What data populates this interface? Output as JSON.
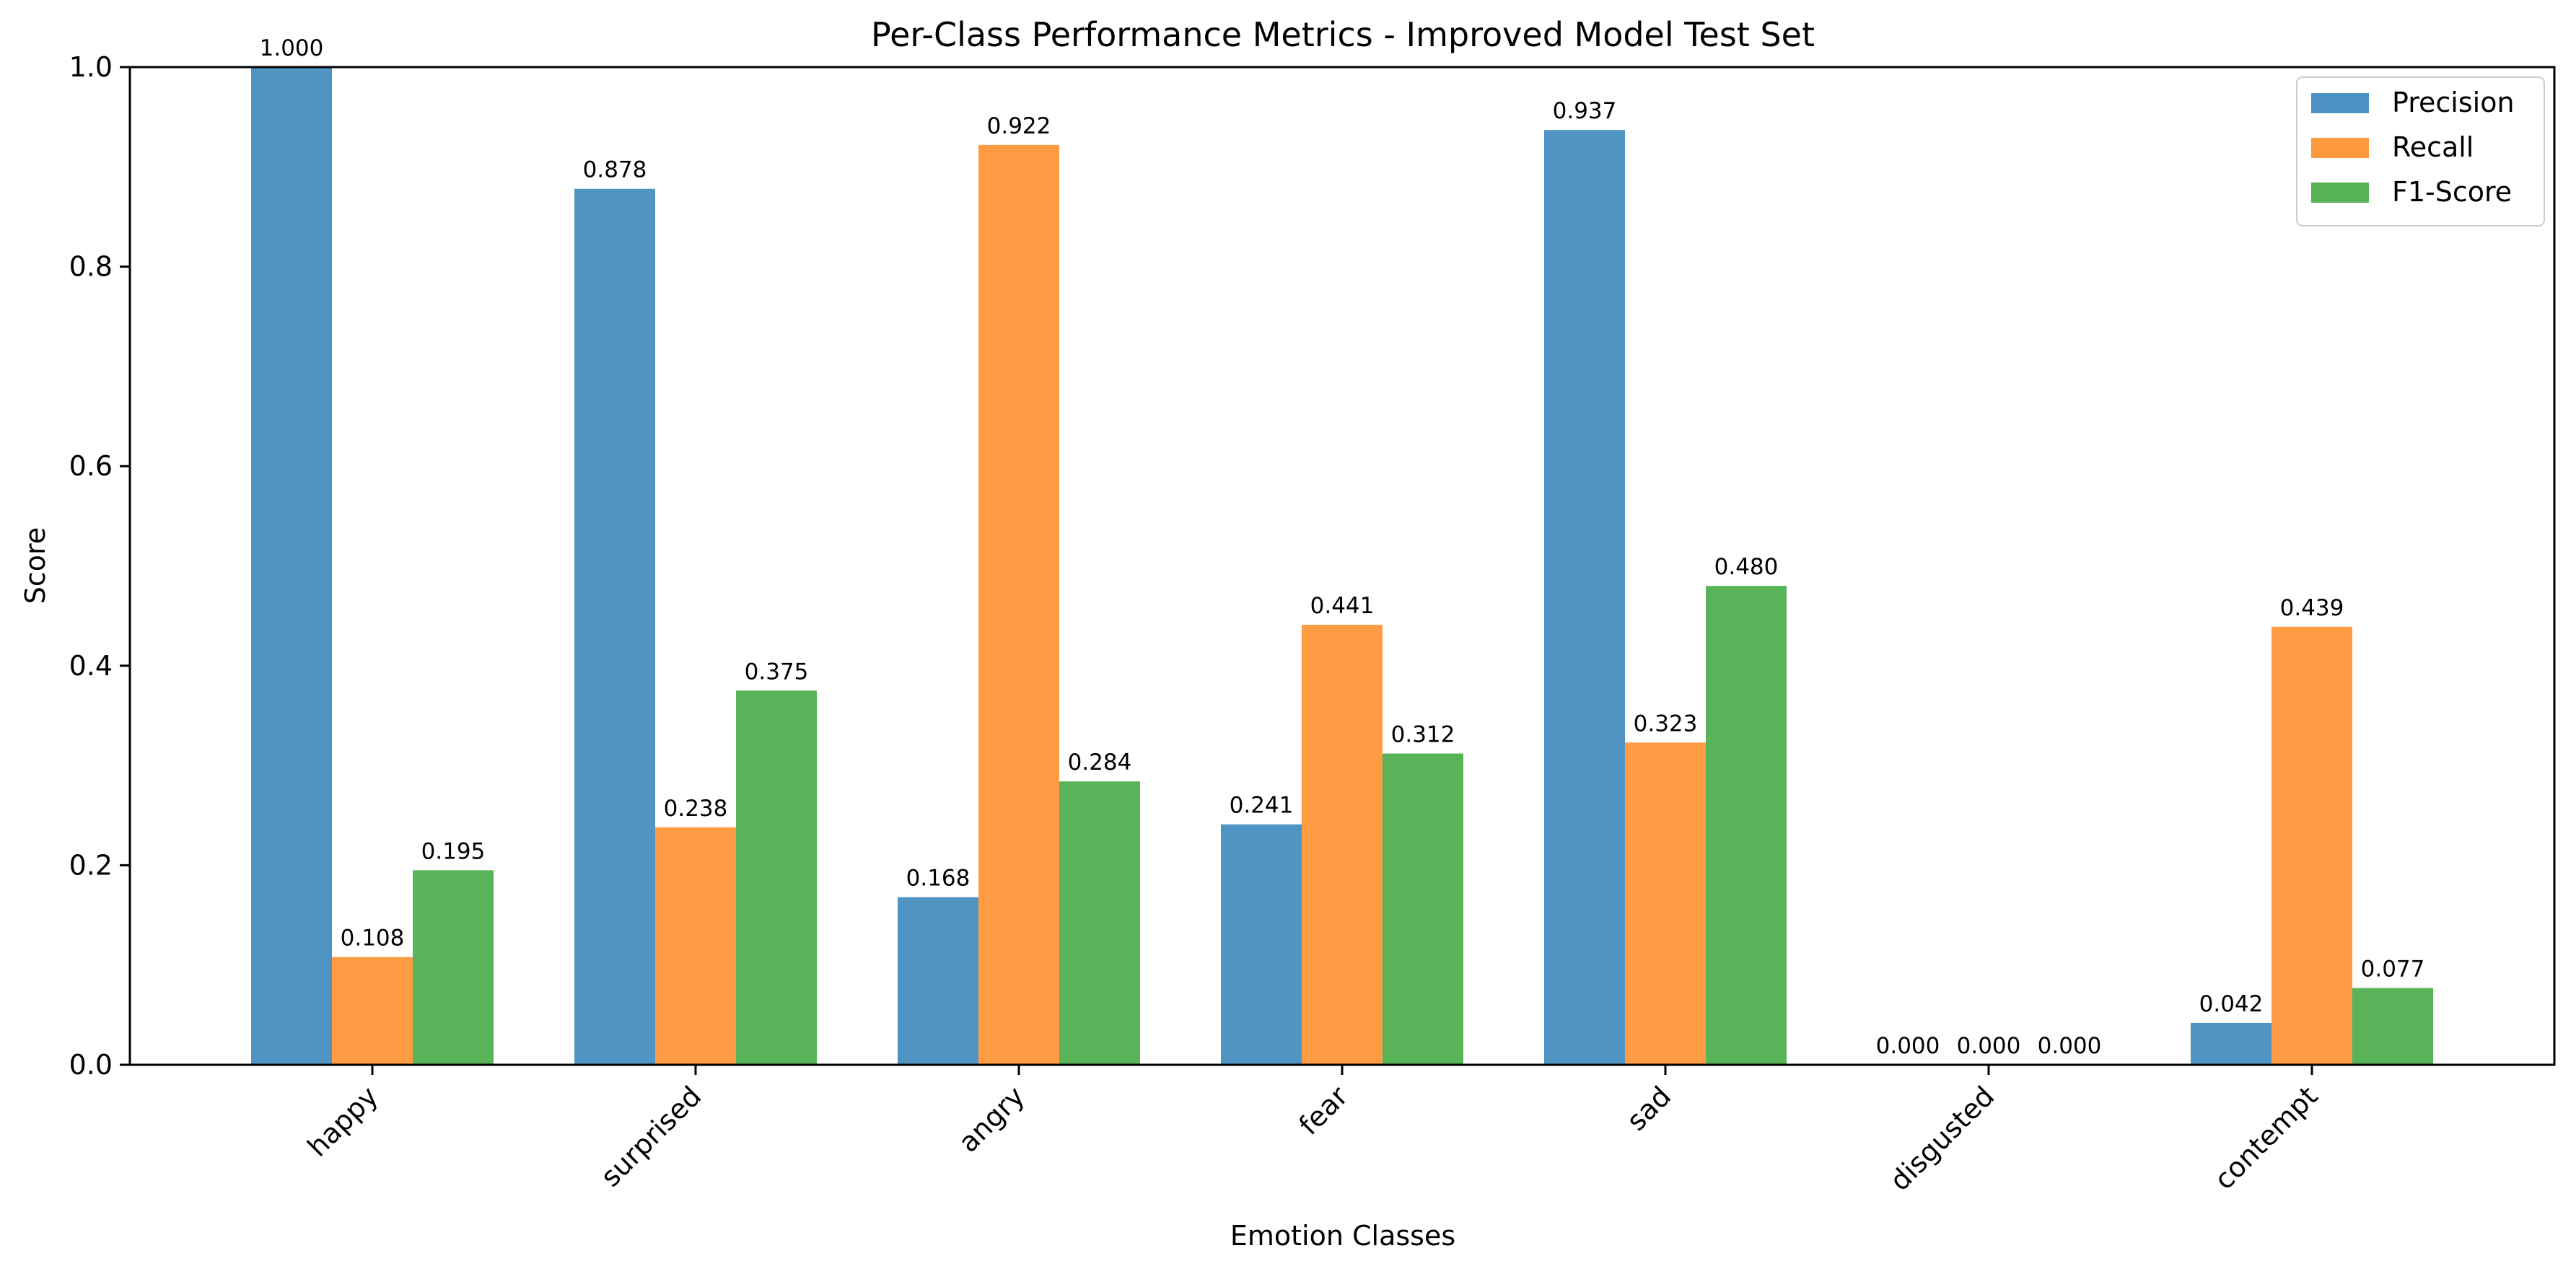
{
  "chart_data": {
    "type": "bar",
    "title": "Per-Class Performance Metrics - Improved Model Test Set",
    "xlabel": "Emotion Classes",
    "ylabel": "Score",
    "ylim": [
      0,
      1.0
    ],
    "yticks": [
      "0.0",
      "0.2",
      "0.4",
      "0.6",
      "0.8",
      "1.0"
    ],
    "categories": [
      "happy",
      "surprised",
      "angry",
      "fear",
      "sad",
      "disgusted",
      "contempt"
    ],
    "series": [
      {
        "name": "Precision",
        "color": "#4c92c3",
        "values": [
          1.0,
          0.878,
          0.168,
          0.241,
          0.937,
          0.0,
          0.042
        ]
      },
      {
        "name": "Recall",
        "color": "#ff993e",
        "values": [
          0.108,
          0.238,
          0.922,
          0.441,
          0.323,
          0.0,
          0.439
        ]
      },
      {
        "name": "F1-Score",
        "color": "#56b356",
        "values": [
          0.195,
          0.375,
          0.284,
          0.312,
          0.48,
          0.0,
          0.077
        ]
      }
    ],
    "grid": false,
    "legend_position": "top-right",
    "data_labels": true
  }
}
